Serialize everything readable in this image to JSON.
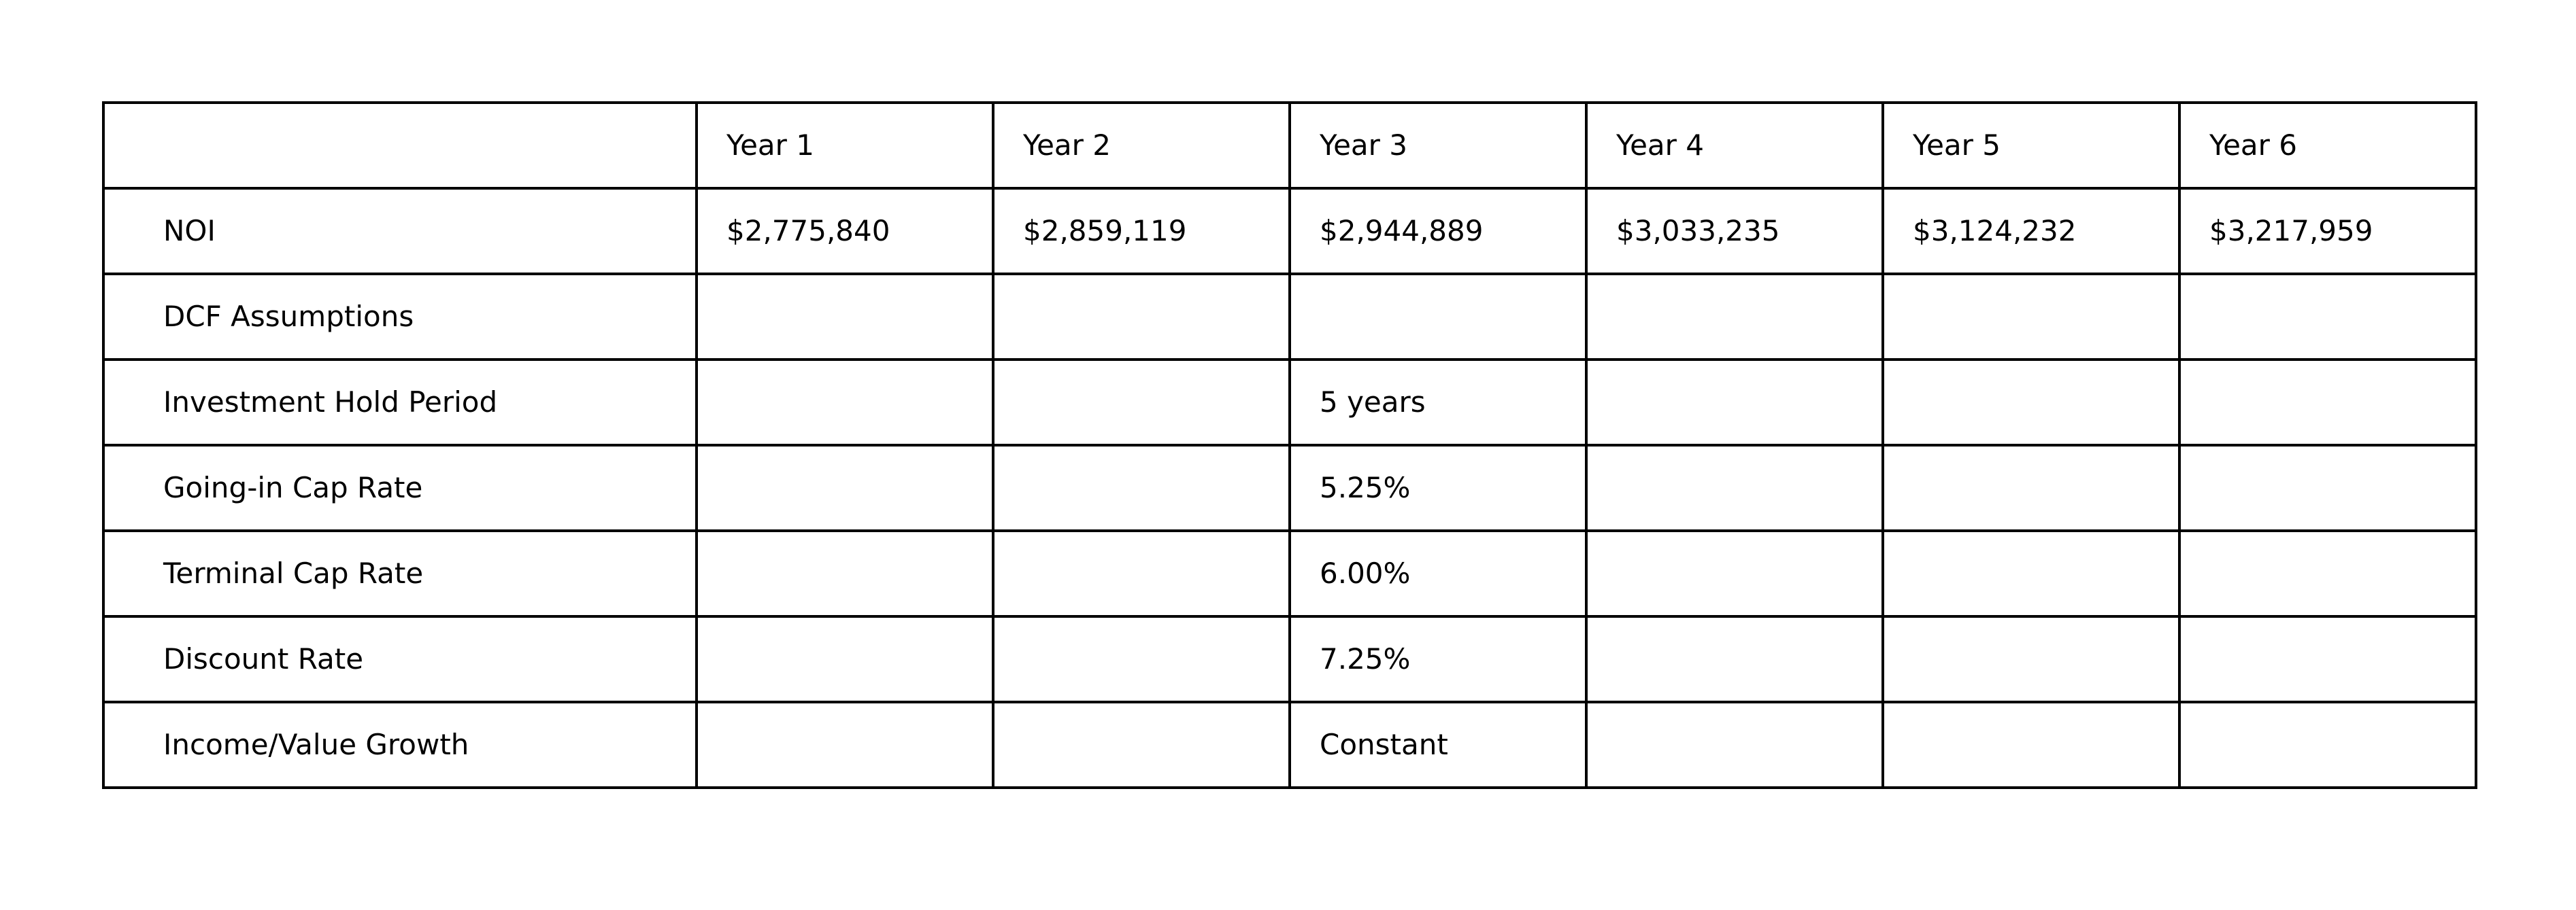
{
  "table": {
    "columns": [
      "",
      "Year 1",
      "Year 2",
      "Year 3",
      "Year 4",
      "Year 5",
      "Year 6"
    ],
    "rows": [
      [
        "NOI",
        "$2,775,840",
        "$2,859,119",
        "$2,944,889",
        "$3,033,235",
        "$3,124,232",
        "$3,217,959"
      ],
      [
        "DCF Assumptions",
        "",
        "",
        "",
        "",
        "",
        ""
      ],
      [
        "Investment Hold Period",
        "",
        "",
        "5 years",
        "",
        "",
        ""
      ],
      [
        "Going-in Cap Rate",
        "",
        "",
        "5.25%",
        "",
        "",
        ""
      ],
      [
        "Terminal Cap Rate",
        "",
        "",
        "6.00%",
        "",
        "",
        ""
      ],
      [
        "Discount Rate",
        "",
        "",
        "7.25%",
        "",
        "",
        ""
      ],
      [
        "Income/Value Growth",
        "",
        "",
        "Constant",
        "",
        "",
        ""
      ]
    ]
  }
}
